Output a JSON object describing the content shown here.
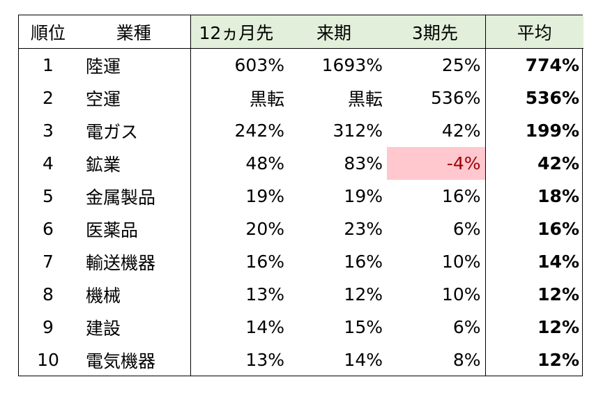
{
  "headers": {
    "rank": "順位",
    "industry": "業種",
    "months12": "12ヵ月先",
    "next_term": "来期",
    "three_terms": "3期先",
    "average": "平均"
  },
  "rows": [
    {
      "rank": "1",
      "industry": "陸運",
      "months12": "603%",
      "next_term": "1693%",
      "three_terms": "25%",
      "average": "774%",
      "three_terms_negative": false
    },
    {
      "rank": "2",
      "industry": "空運",
      "months12": "黒転",
      "next_term": "黒転",
      "three_terms": "536%",
      "average": "536%",
      "three_terms_negative": false
    },
    {
      "rank": "3",
      "industry": "電ガス",
      "months12": "242%",
      "next_term": "312%",
      "three_terms": "42%",
      "average": "199%",
      "three_terms_negative": false
    },
    {
      "rank": "4",
      "industry": "鉱業",
      "months12": "48%",
      "next_term": "83%",
      "three_terms": "-4%",
      "average": "42%",
      "three_terms_negative": true
    },
    {
      "rank": "5",
      "industry": "金属製品",
      "months12": "19%",
      "next_term": "19%",
      "three_terms": "16%",
      "average": "18%",
      "three_terms_negative": false
    },
    {
      "rank": "6",
      "industry": "医薬品",
      "months12": "20%",
      "next_term": "23%",
      "three_terms": "6%",
      "average": "16%",
      "three_terms_negative": false
    },
    {
      "rank": "7",
      "industry": "輸送機器",
      "months12": "16%",
      "next_term": "16%",
      "three_terms": "10%",
      "average": "14%",
      "three_terms_negative": false
    },
    {
      "rank": "8",
      "industry": "機械",
      "months12": "13%",
      "next_term": "12%",
      "three_terms": "10%",
      "average": "12%",
      "three_terms_negative": false
    },
    {
      "rank": "9",
      "industry": "建設",
      "months12": "14%",
      "next_term": "15%",
      "three_terms": "6%",
      "average": "12%",
      "three_terms_negative": false
    },
    {
      "rank": "10",
      "industry": "電気機器",
      "months12": "13%",
      "next_term": "14%",
      "three_terms": "8%",
      "average": "12%",
      "three_terms_negative": false
    }
  ],
  "colors": {
    "header_highlight": "#e2efda",
    "negative_fill": "#ffc7ce",
    "negative_text": "#9c0006"
  }
}
